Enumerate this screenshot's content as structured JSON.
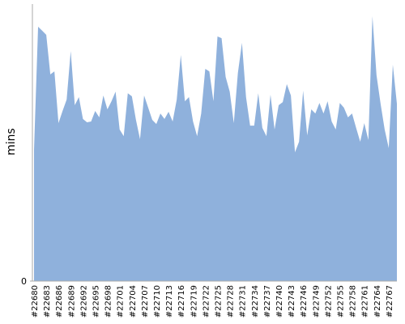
{
  "chart_data": {
    "type": "area",
    "y_label": "mins",
    "color": "#8fb1dc",
    "categories": [
      "#22680",
      null,
      null,
      "#22683",
      null,
      null,
      "#22686",
      null,
      null,
      "#22689",
      null,
      null,
      "#22692",
      null,
      null,
      "#22695",
      null,
      null,
      "#22698",
      null,
      null,
      "#22701",
      null,
      null,
      "#22704",
      null,
      null,
      "#22707",
      null,
      null,
      "#22710",
      null,
      null,
      "#22713",
      null,
      null,
      "#22716",
      null,
      null,
      "#22719",
      null,
      null,
      "#22722",
      null,
      null,
      "#22725",
      null,
      null,
      "#22728",
      null,
      null,
      "#22731",
      null,
      null,
      "#22734",
      null,
      null,
      "#22737",
      null,
      null,
      "#22740",
      null,
      null,
      "#22743",
      null,
      null,
      "#22746",
      null,
      null,
      "#22749",
      null,
      null,
      "#22752",
      null,
      null,
      "#22755",
      null,
      null,
      "#22758",
      null,
      null,
      "#22761",
      null,
      null,
      "#22764",
      null,
      null,
      "#22767",
      null,
      null
    ],
    "values": [
      47.4,
      91.8,
      90.4,
      88.9,
      74.6,
      75.7,
      57.0,
      61.4,
      65.5,
      83.0,
      63.5,
      66.4,
      58.5,
      57.3,
      57.6,
      61.4,
      59.1,
      67.0,
      62.0,
      64.9,
      68.4,
      54.7,
      52.3,
      67.8,
      66.7,
      58.2,
      51.2,
      67.0,
      62.6,
      58.2,
      56.7,
      60.5,
      58.5,
      61.1,
      57.6,
      65.5,
      81.6,
      64.9,
      66.4,
      57.6,
      52.3,
      60.5,
      76.6,
      75.7,
      64.9,
      88.3,
      87.7,
      73.7,
      68.4,
      57.0,
      75.1,
      86.0,
      66.4,
      56.1,
      56.1,
      67.8,
      55.3,
      52.3,
      67.3,
      54.7,
      63.5,
      64.6,
      71.1,
      67.0,
      46.5,
      50.3,
      68.7,
      52.6,
      62.0,
      60.5,
      64.3,
      60.5,
      64.9,
      57.6,
      54.7,
      64.3,
      62.6,
      59.1,
      60.5,
      55.3,
      50.3,
      57.0,
      50.9,
      95.6,
      74.3,
      64.0,
      54.7,
      48.0,
      78.1,
      64.0
    ],
    "ylim": [
      0,
      100
    ],
    "yticks": [
      0
    ]
  }
}
